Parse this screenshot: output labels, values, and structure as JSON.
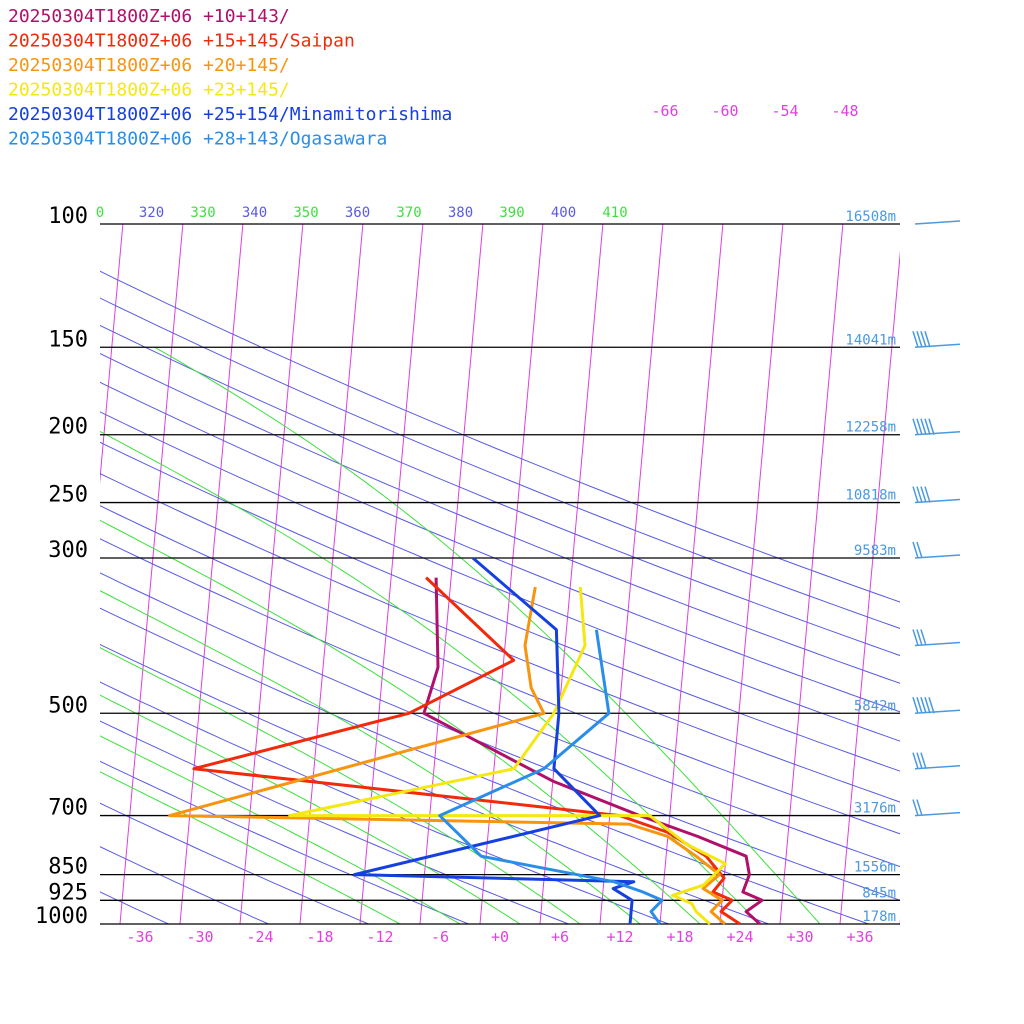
{
  "chart_data": {
    "type": "line",
    "title": "",
    "xlabel": "",
    "ylabel": "",
    "pressure_levels": [
      100,
      150,
      200,
      250,
      300,
      500,
      700,
      850,
      925,
      1000
    ],
    "pressure_labels": [
      "100",
      "150",
      "200",
      "250",
      "300",
      "500",
      "700",
      "850",
      "925",
      "1000"
    ],
    "temperature_ticks": [
      "-36",
      "-30",
      "-24",
      "-18",
      "-12",
      "-6",
      "+0",
      "+6",
      "+12",
      "+18",
      "+24",
      "+30",
      "+36"
    ],
    "top_temperature_labels": [
      "-66",
      "-60",
      "-54",
      "-48"
    ],
    "theta_labels": [
      "0",
      "320",
      "330",
      "340",
      "350",
      "360",
      "370",
      "380",
      "390",
      "400",
      "410"
    ],
    "height_labels": [
      "16508m",
      "14041m",
      "12258m",
      "10818m",
      "9583m",
      "5842m",
      "3176m",
      "1556m",
      "845m",
      "178m"
    ],
    "xlim": [
      -40,
      40
    ],
    "ylim": [
      1000,
      100
    ],
    "series": [
      {
        "name": "20250304T1800Z+06 +10+143/",
        "color": "#b0106a",
        "points": [
          [
            26,
            1000
          ],
          [
            24.5,
            960
          ],
          [
            26,
            925
          ],
          [
            24,
            900
          ],
          [
            24.5,
            850
          ],
          [
            24,
            800
          ],
          [
            19,
            750
          ],
          [
            13,
            700
          ],
          [
            4,
            625
          ],
          [
            -9.5,
            500
          ],
          [
            -8.5,
            430
          ],
          [
            -9.5,
            320
          ]
        ]
      },
      {
        "name": "20250304T1800Z+06 +15+145/Saipan",
        "color": "#f02a0a",
        "points": [
          [
            24,
            1000
          ],
          [
            22,
            960
          ],
          [
            23,
            925
          ],
          [
            21,
            900
          ],
          [
            22,
            860
          ],
          [
            20,
            800
          ],
          [
            16,
            740
          ],
          [
            11,
            700
          ],
          [
            -32,
            600
          ],
          [
            -11,
            500
          ],
          [
            -1,
            420
          ],
          [
            -10.5,
            320
          ]
        ]
      },
      {
        "name": "20250304T1800Z+06 +20+145/",
        "color": "#f7950f",
        "points": [
          [
            22.5,
            1000
          ],
          [
            21,
            960
          ],
          [
            22,
            925
          ],
          [
            20,
            890
          ],
          [
            21.5,
            850
          ],
          [
            19,
            800
          ],
          [
            16,
            750
          ],
          [
            12,
            720
          ],
          [
            -34,
            700
          ],
          [
            2.5,
            500
          ],
          [
            1,
            460
          ],
          [
            0,
            400
          ],
          [
            0.5,
            330
          ]
        ]
      },
      {
        "name": "20250304T1800Z+06 +23+145/",
        "color": "#f5e810",
        "points": [
          [
            21,
            1000
          ],
          [
            19.5,
            960
          ],
          [
            19,
            935
          ],
          [
            17,
            910
          ],
          [
            20,
            880
          ],
          [
            22,
            820
          ],
          [
            18,
            770
          ],
          [
            14,
            700
          ],
          [
            -22,
            700
          ],
          [
            0,
            600
          ],
          [
            3.5,
            500
          ],
          [
            6,
            400
          ],
          [
            5,
            330
          ]
        ]
      },
      {
        "name": "20250304T1800Z+06 +25+154/Minamitorishima",
        "color": "#1540e0",
        "points": [
          [
            13,
            1000
          ],
          [
            13,
            960
          ],
          [
            13,
            925
          ],
          [
            11,
            890
          ],
          [
            13,
            870
          ],
          [
            -15,
            850
          ],
          [
            9,
            700
          ],
          [
            4,
            600
          ],
          [
            4,
            500
          ],
          [
            3,
            380
          ],
          [
            -6,
            300
          ]
        ]
      },
      {
        "name": "20250304T1800Z+06 +28+143/Ogasawara",
        "color": "#2a8ee8",
        "points": [
          [
            16,
            1000
          ],
          [
            15,
            960
          ],
          [
            16,
            925
          ],
          [
            14,
            900
          ],
          [
            11,
            870
          ],
          [
            -2.5,
            800
          ],
          [
            -7,
            700
          ],
          [
            3,
            600
          ],
          [
            9,
            500
          ],
          [
            7,
            380
          ]
        ]
      }
    ],
    "grid": true,
    "legend_position": "top-left"
  },
  "colors": {
    "isobar": "#000000",
    "isotherm": "#e040e0",
    "dry_adiabat": "#5a5ae6",
    "moist_adiabat": "#3ee03e",
    "height_label": "#4a9ae0"
  }
}
